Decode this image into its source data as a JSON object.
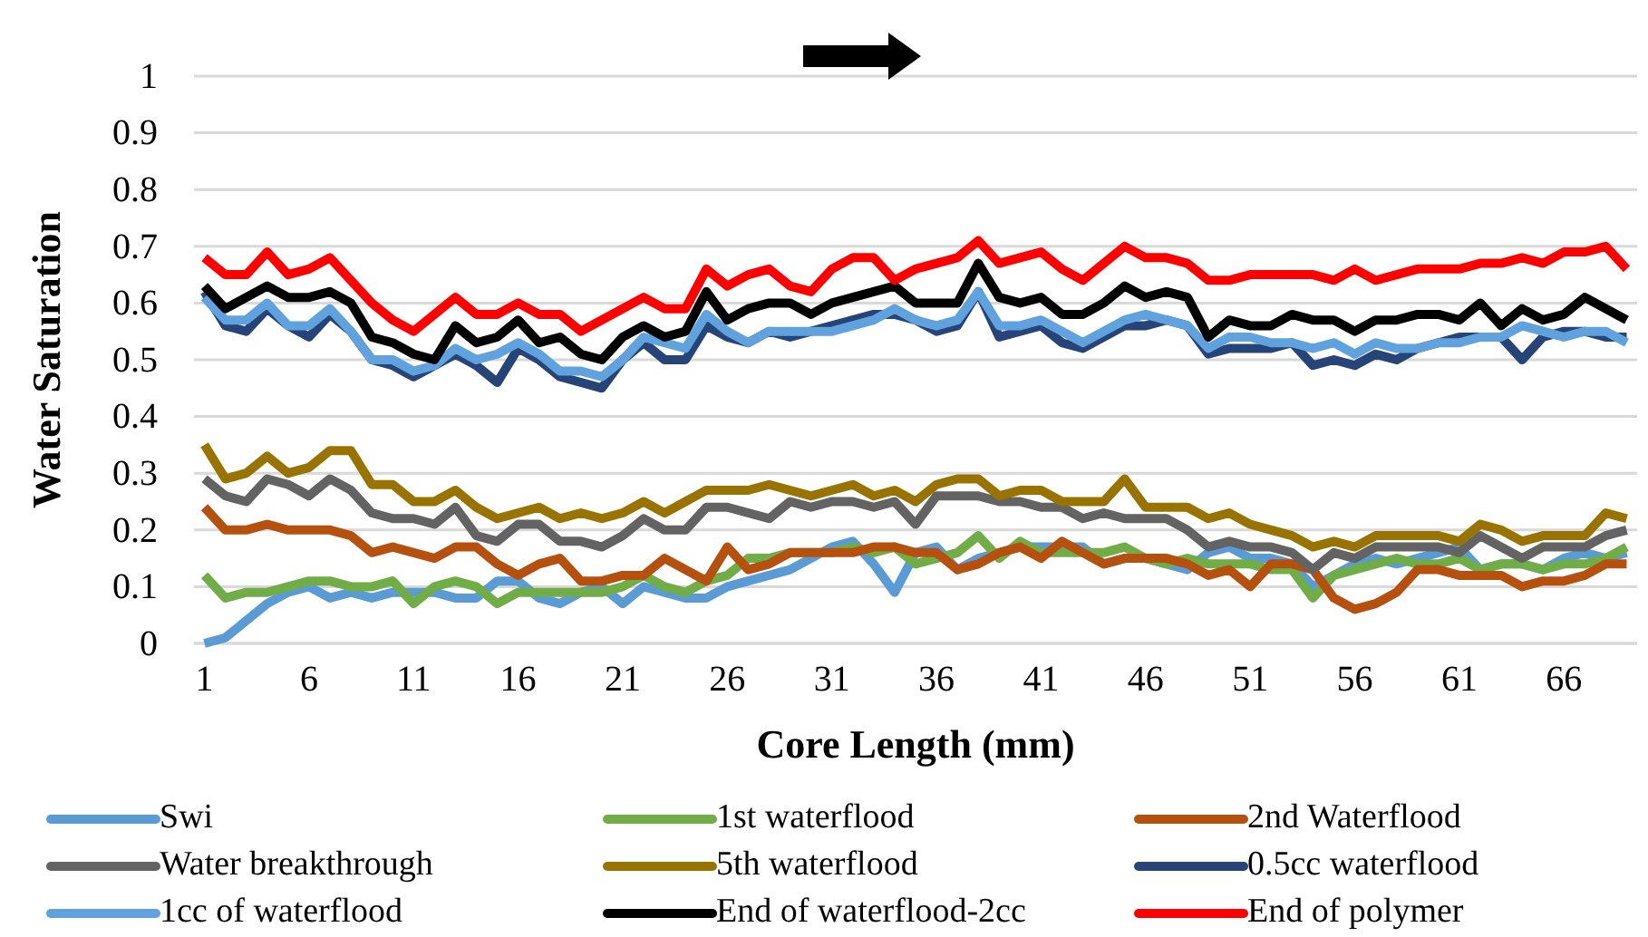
{
  "chart_data": {
    "type": "line",
    "xlabel": "Core Length (mm)",
    "ylabel": "Water Saturation",
    "x": [
      1,
      2,
      3,
      4,
      5,
      6,
      7,
      8,
      9,
      10,
      11,
      12,
      13,
      14,
      15,
      16,
      17,
      18,
      19,
      20,
      21,
      22,
      23,
      24,
      25,
      26,
      27,
      28,
      29,
      30,
      31,
      32,
      33,
      34,
      35,
      36,
      37,
      38,
      39,
      40,
      41,
      42,
      43,
      44,
      45,
      46,
      47,
      48,
      49,
      50,
      51,
      52,
      53,
      54,
      55,
      56,
      57,
      58,
      59,
      60,
      61,
      62,
      63,
      64,
      65,
      66,
      67,
      68,
      69
    ],
    "xlim": [
      0.5,
      69.5
    ],
    "xticks": [
      1,
      6,
      11,
      16,
      21,
      26,
      31,
      36,
      41,
      46,
      51,
      56,
      61,
      66
    ],
    "ylim": [
      0,
      1
    ],
    "yticks": [
      {
        "value": 0,
        "label": "0"
      },
      {
        "value": 0.1,
        "label": "0.1"
      },
      {
        "value": 0.2,
        "label": "0.2"
      },
      {
        "value": 0.3,
        "label": "0.3"
      },
      {
        "value": 0.4,
        "label": "0.4"
      },
      {
        "value": 0.5,
        "label": "0.5"
      },
      {
        "value": 0.6,
        "label": "0.6"
      },
      {
        "value": 0.7,
        "label": "0.7"
      },
      {
        "value": 0.8,
        "label": "0.8"
      },
      {
        "value": 0.9,
        "label": "0.9"
      },
      {
        "value": 1,
        "label": "1"
      }
    ],
    "grid": "y",
    "legend": "bottom",
    "line_style": "solid",
    "marker": "none",
    "series": [
      {
        "name": "Swi",
        "color": "#5b9bd5",
        "values": [
          0.0,
          0.01,
          0.04,
          0.07,
          0.09,
          0.1,
          0.08,
          0.09,
          0.08,
          0.09,
          0.09,
          0.09,
          0.08,
          0.08,
          0.11,
          0.11,
          0.08,
          0.07,
          0.09,
          0.1,
          0.07,
          0.1,
          0.09,
          0.08,
          0.08,
          0.1,
          0.11,
          0.12,
          0.13,
          0.15,
          0.17,
          0.18,
          0.14,
          0.09,
          0.16,
          0.17,
          0.13,
          0.15,
          0.16,
          0.17,
          0.17,
          0.17,
          0.17,
          0.14,
          0.15,
          0.15,
          0.14,
          0.13,
          0.16,
          0.17,
          0.15,
          0.15,
          0.14,
          0.1,
          0.12,
          0.14,
          0.15,
          0.14,
          0.15,
          0.16,
          0.17,
          0.13,
          0.14,
          0.14,
          0.13,
          0.15,
          0.16,
          0.15,
          0.16
        ]
      },
      {
        "name": "1st waterflood",
        "color": "#70ad47",
        "values": [
          0.12,
          0.08,
          0.09,
          0.09,
          0.1,
          0.11,
          0.11,
          0.1,
          0.1,
          0.11,
          0.07,
          0.1,
          0.11,
          0.1,
          0.07,
          0.09,
          0.09,
          0.09,
          0.09,
          0.09,
          0.1,
          0.12,
          0.1,
          0.09,
          0.11,
          0.12,
          0.15,
          0.15,
          0.16,
          0.16,
          0.16,
          0.17,
          0.16,
          0.17,
          0.14,
          0.15,
          0.16,
          0.19,
          0.15,
          0.18,
          0.16,
          0.16,
          0.16,
          0.16,
          0.17,
          0.15,
          0.14,
          0.15,
          0.14,
          0.14,
          0.14,
          0.13,
          0.13,
          0.08,
          0.12,
          0.13,
          0.14,
          0.15,
          0.14,
          0.14,
          0.15,
          0.13,
          0.14,
          0.14,
          0.13,
          0.14,
          0.14,
          0.15,
          0.17
        ]
      },
      {
        "name": "2nd Waterflood",
        "color": "#b5500f",
        "values": [
          0.24,
          0.2,
          0.2,
          0.21,
          0.2,
          0.2,
          0.2,
          0.19,
          0.16,
          0.17,
          0.16,
          0.15,
          0.17,
          0.17,
          0.14,
          0.12,
          0.14,
          0.15,
          0.11,
          0.11,
          0.12,
          0.12,
          0.15,
          0.13,
          0.11,
          0.17,
          0.13,
          0.14,
          0.16,
          0.16,
          0.16,
          0.16,
          0.17,
          0.17,
          0.16,
          0.16,
          0.13,
          0.14,
          0.16,
          0.17,
          0.15,
          0.18,
          0.16,
          0.14,
          0.15,
          0.15,
          0.15,
          0.14,
          0.12,
          0.13,
          0.1,
          0.14,
          0.14,
          0.13,
          0.08,
          0.06,
          0.07,
          0.09,
          0.13,
          0.13,
          0.12,
          0.12,
          0.12,
          0.1,
          0.11,
          0.11,
          0.12,
          0.14,
          0.14
        ]
      },
      {
        "name": "Water breakthrough",
        "color": "#636363",
        "values": [
          0.29,
          0.26,
          0.25,
          0.29,
          0.28,
          0.26,
          0.29,
          0.27,
          0.23,
          0.22,
          0.22,
          0.21,
          0.24,
          0.19,
          0.18,
          0.21,
          0.21,
          0.18,
          0.18,
          0.17,
          0.19,
          0.22,
          0.2,
          0.2,
          0.24,
          0.24,
          0.23,
          0.22,
          0.25,
          0.24,
          0.25,
          0.25,
          0.24,
          0.25,
          0.21,
          0.26,
          0.26,
          0.26,
          0.25,
          0.25,
          0.24,
          0.24,
          0.22,
          0.23,
          0.22,
          0.22,
          0.22,
          0.2,
          0.17,
          0.18,
          0.17,
          0.17,
          0.16,
          0.13,
          0.16,
          0.15,
          0.17,
          0.17,
          0.17,
          0.17,
          0.16,
          0.19,
          0.17,
          0.15,
          0.17,
          0.17,
          0.17,
          0.19,
          0.2
        ]
      },
      {
        "name": "5th waterflood",
        "color": "#997300",
        "values": [
          0.35,
          0.29,
          0.3,
          0.33,
          0.3,
          0.31,
          0.34,
          0.34,
          0.28,
          0.28,
          0.25,
          0.25,
          0.27,
          0.24,
          0.22,
          0.23,
          0.24,
          0.22,
          0.23,
          0.22,
          0.23,
          0.25,
          0.23,
          0.25,
          0.27,
          0.27,
          0.27,
          0.28,
          0.27,
          0.26,
          0.27,
          0.28,
          0.26,
          0.27,
          0.25,
          0.28,
          0.29,
          0.29,
          0.26,
          0.27,
          0.27,
          0.25,
          0.25,
          0.25,
          0.29,
          0.24,
          0.24,
          0.24,
          0.22,
          0.23,
          0.21,
          0.2,
          0.19,
          0.17,
          0.18,
          0.17,
          0.19,
          0.19,
          0.19,
          0.19,
          0.18,
          0.21,
          0.2,
          0.18,
          0.19,
          0.19,
          0.19,
          0.23,
          0.22
        ]
      },
      {
        "name": "0.5cc waterflood",
        "color": "#264478",
        "values": [
          0.62,
          0.56,
          0.55,
          0.59,
          0.56,
          0.54,
          0.58,
          0.55,
          0.5,
          0.49,
          0.47,
          0.49,
          0.51,
          0.49,
          0.46,
          0.52,
          0.5,
          0.47,
          0.46,
          0.45,
          0.5,
          0.53,
          0.5,
          0.5,
          0.56,
          0.54,
          0.53,
          0.55,
          0.54,
          0.55,
          0.56,
          0.57,
          0.58,
          0.58,
          0.57,
          0.55,
          0.56,
          0.62,
          0.54,
          0.55,
          0.56,
          0.53,
          0.52,
          0.54,
          0.56,
          0.56,
          0.57,
          0.56,
          0.51,
          0.52,
          0.52,
          0.52,
          0.53,
          0.49,
          0.5,
          0.49,
          0.51,
          0.5,
          0.52,
          0.53,
          0.54,
          0.54,
          0.54,
          0.5,
          0.54,
          0.55,
          0.55,
          0.54,
          0.54
        ]
      },
      {
        "name": "1cc of waterflood",
        "color": "#5fa2dd",
        "values": [
          0.61,
          0.57,
          0.57,
          0.6,
          0.56,
          0.56,
          0.59,
          0.55,
          0.5,
          0.5,
          0.48,
          0.49,
          0.52,
          0.5,
          0.51,
          0.53,
          0.51,
          0.48,
          0.48,
          0.47,
          0.5,
          0.54,
          0.53,
          0.52,
          0.58,
          0.55,
          0.53,
          0.55,
          0.55,
          0.55,
          0.55,
          0.56,
          0.57,
          0.59,
          0.57,
          0.56,
          0.57,
          0.62,
          0.56,
          0.56,
          0.57,
          0.55,
          0.53,
          0.55,
          0.57,
          0.58,
          0.57,
          0.56,
          0.52,
          0.54,
          0.54,
          0.53,
          0.53,
          0.52,
          0.53,
          0.51,
          0.53,
          0.52,
          0.52,
          0.53,
          0.53,
          0.54,
          0.54,
          0.56,
          0.55,
          0.54,
          0.55,
          0.55,
          0.53
        ]
      },
      {
        "name": "End of waterflood-2cc",
        "color": "#000000",
        "values": [
          0.63,
          0.59,
          0.61,
          0.63,
          0.61,
          0.61,
          0.62,
          0.6,
          0.54,
          0.53,
          0.51,
          0.5,
          0.56,
          0.53,
          0.54,
          0.57,
          0.53,
          0.54,
          0.51,
          0.5,
          0.54,
          0.56,
          0.54,
          0.55,
          0.62,
          0.57,
          0.59,
          0.6,
          0.6,
          0.58,
          0.6,
          0.61,
          0.62,
          0.63,
          0.6,
          0.6,
          0.6,
          0.67,
          0.61,
          0.6,
          0.61,
          0.58,
          0.58,
          0.6,
          0.63,
          0.61,
          0.62,
          0.61,
          0.54,
          0.57,
          0.56,
          0.56,
          0.58,
          0.57,
          0.57,
          0.55,
          0.57,
          0.57,
          0.58,
          0.58,
          0.57,
          0.6,
          0.56,
          0.59,
          0.57,
          0.58,
          0.61,
          0.59,
          0.57
        ]
      },
      {
        "name": "End of polymer",
        "color": "#ff0000",
        "values": [
          0.68,
          0.65,
          0.65,
          0.69,
          0.65,
          0.66,
          0.68,
          0.64,
          0.6,
          0.57,
          0.55,
          0.58,
          0.61,
          0.58,
          0.58,
          0.6,
          0.58,
          0.58,
          0.55,
          0.57,
          0.59,
          0.61,
          0.59,
          0.59,
          0.66,
          0.63,
          0.65,
          0.66,
          0.63,
          0.62,
          0.66,
          0.68,
          0.68,
          0.64,
          0.66,
          0.67,
          0.68,
          0.71,
          0.67,
          0.68,
          0.69,
          0.66,
          0.64,
          0.67,
          0.7,
          0.68,
          0.68,
          0.67,
          0.64,
          0.64,
          0.65,
          0.65,
          0.65,
          0.65,
          0.64,
          0.66,
          0.64,
          0.65,
          0.66,
          0.66,
          0.66,
          0.67,
          0.67,
          0.68,
          0.67,
          0.69,
          0.69,
          0.7,
          0.66
        ]
      }
    ]
  }
}
